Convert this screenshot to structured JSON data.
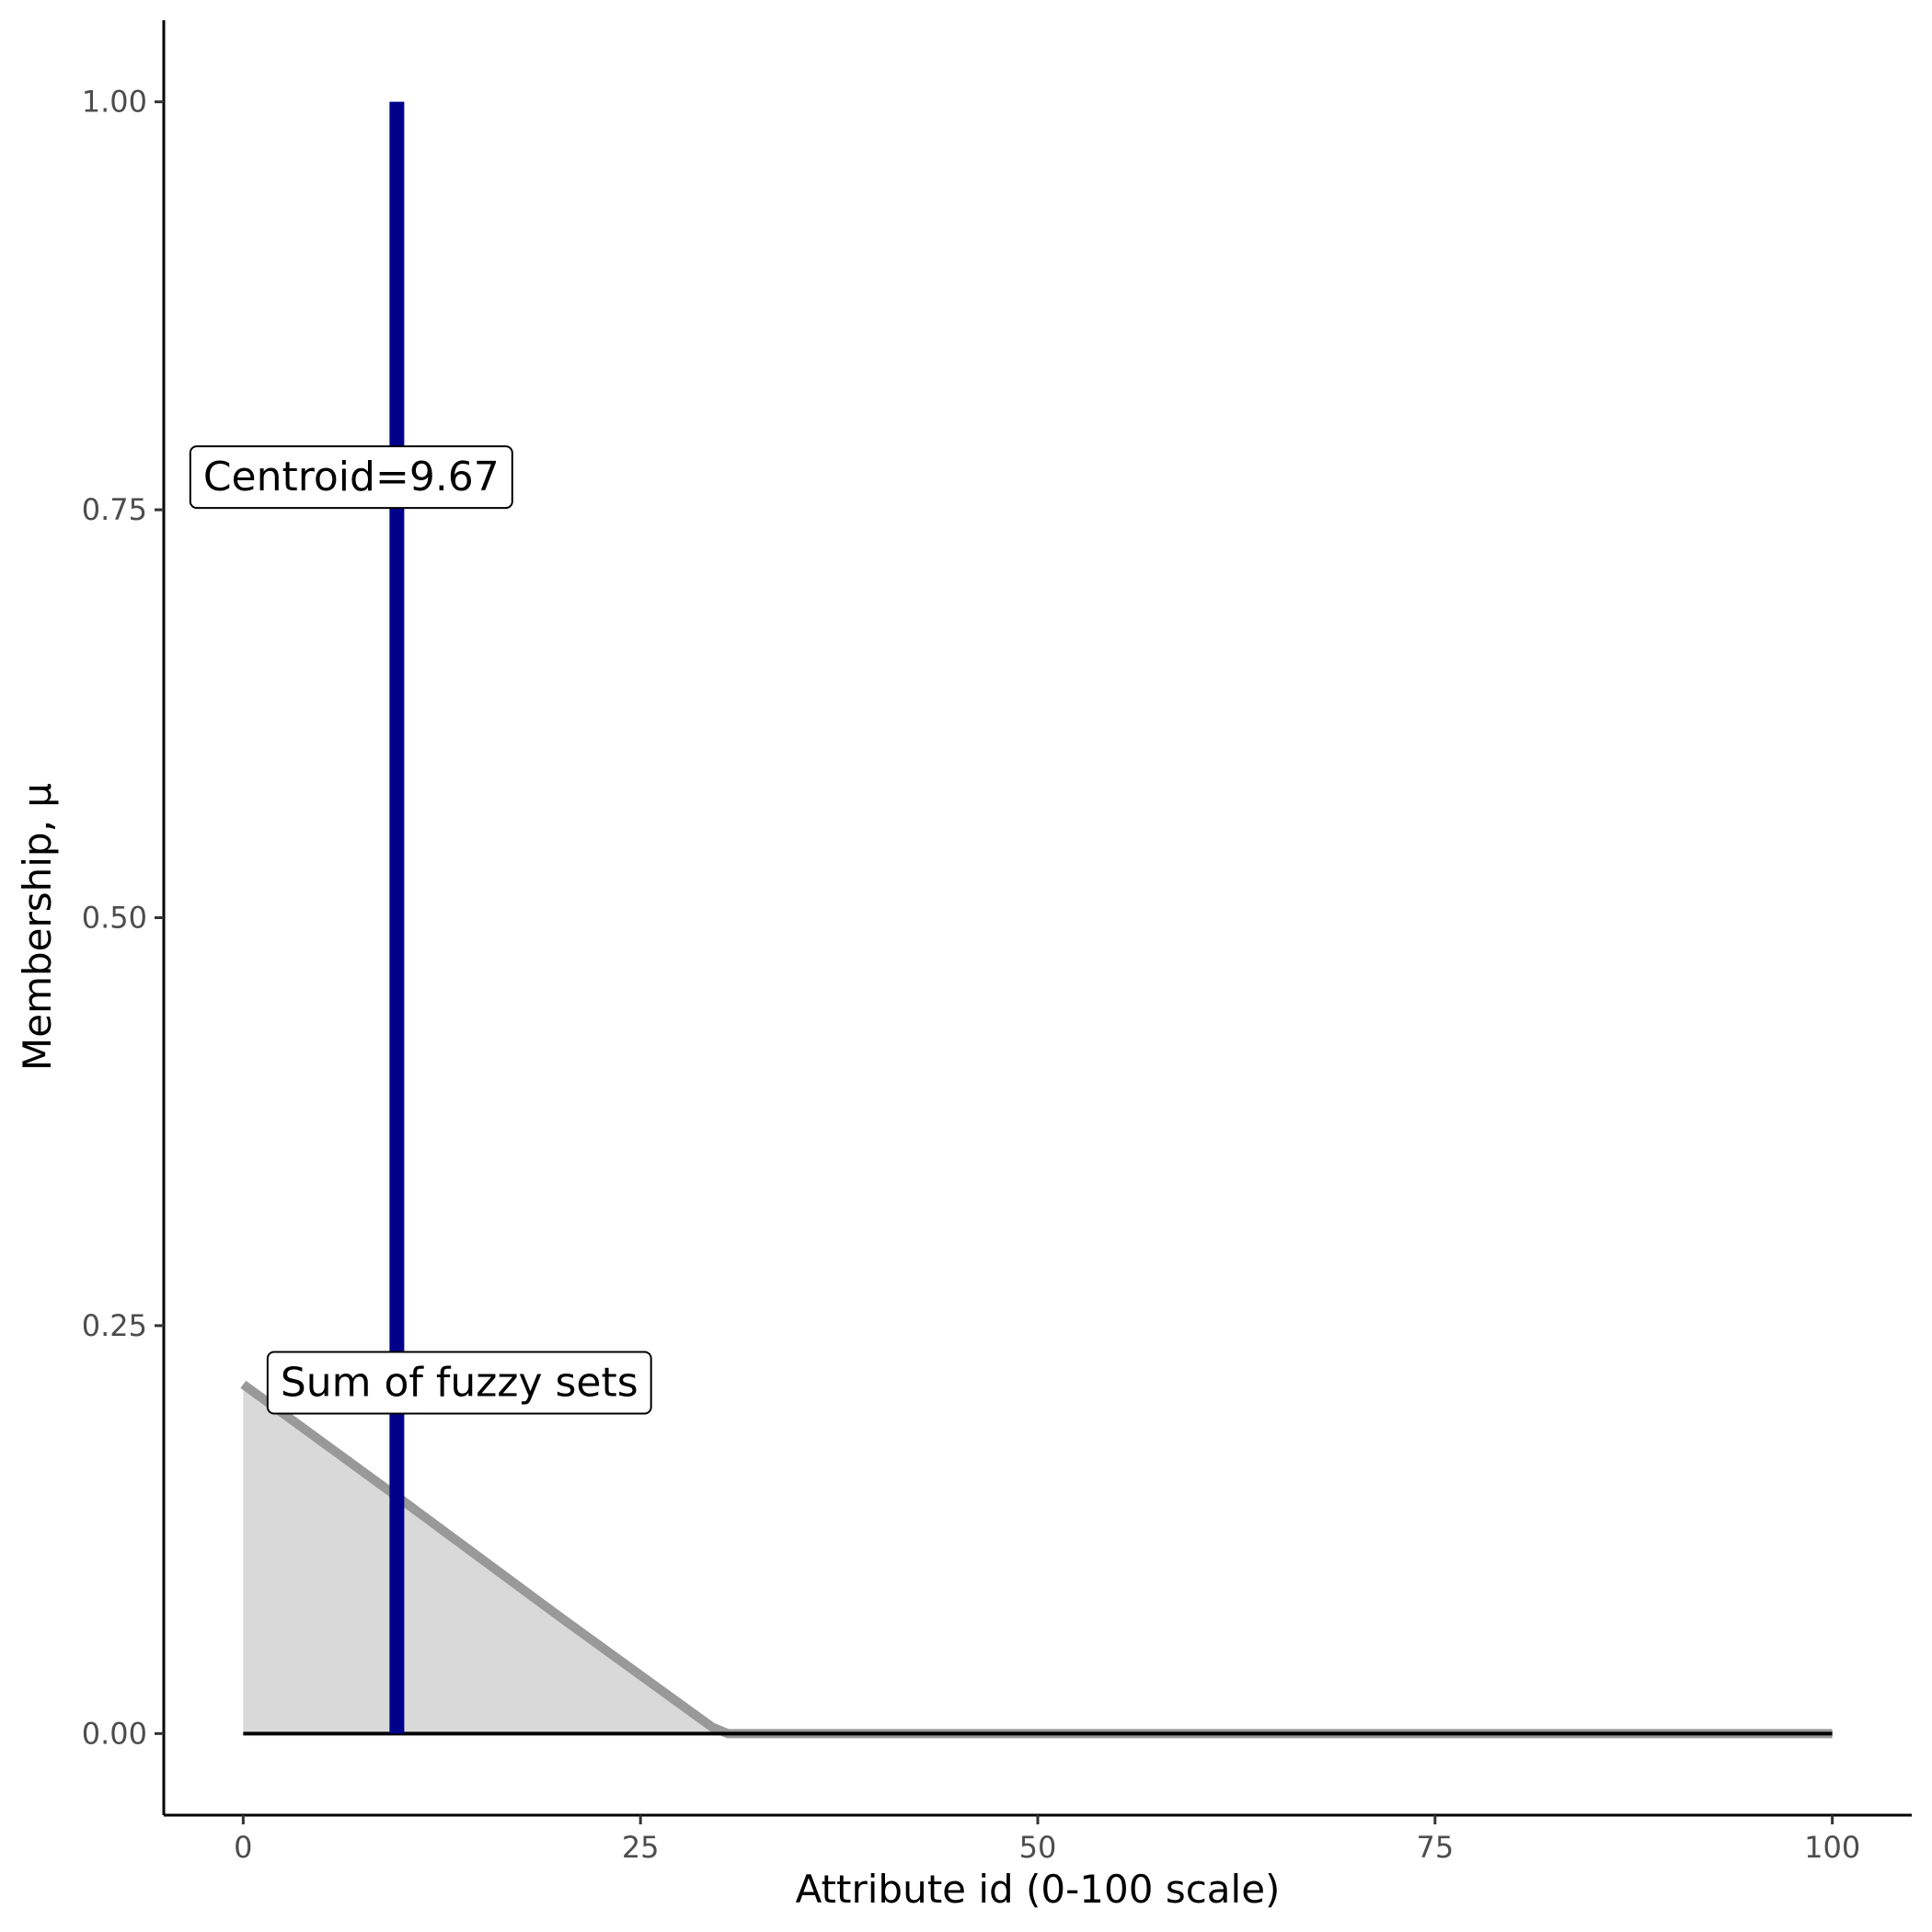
{
  "chart_data": {
    "type": "area",
    "xlabel": "Attribute id (0-100 scale)",
    "ylabel": "Membership, μ",
    "xlim": [
      -5,
      105
    ],
    "ylim": [
      -0.05,
      1.05
    ],
    "x_ticks": [
      0,
      25,
      50,
      75,
      100
    ],
    "x_tick_labels": [
      "0",
      "25",
      "50",
      "75",
      "100"
    ],
    "y_ticks": [
      0,
      0.25,
      0.5,
      0.75,
      1.0
    ],
    "y_tick_labels": [
      "0.00",
      "0.25",
      "0.50",
      "0.75",
      "1.00"
    ],
    "grid": false,
    "series": [
      {
        "type": "area",
        "x": [
          0,
          10,
          20,
          29.5,
          30.5,
          100
        ],
        "y": [
          0.214,
          0.143,
          0.071,
          0.004,
          0.0,
          0.0
        ],
        "fill": "#d9d9d9",
        "stroke": "#999999"
      },
      {
        "type": "vline",
        "x": 9.67,
        "y": [
          0,
          1.0
        ],
        "color": "#00008b"
      },
      {
        "type": "baseline",
        "x": [
          0,
          100
        ],
        "y": [
          0,
          0
        ],
        "color": "#000000"
      }
    ],
    "annotations": [
      {
        "text": "Centroid=9.67",
        "x": 6.8,
        "y": 0.77
      },
      {
        "text": "Sum of fuzzy sets",
        "x": 13.6,
        "y": 0.215
      }
    ]
  }
}
